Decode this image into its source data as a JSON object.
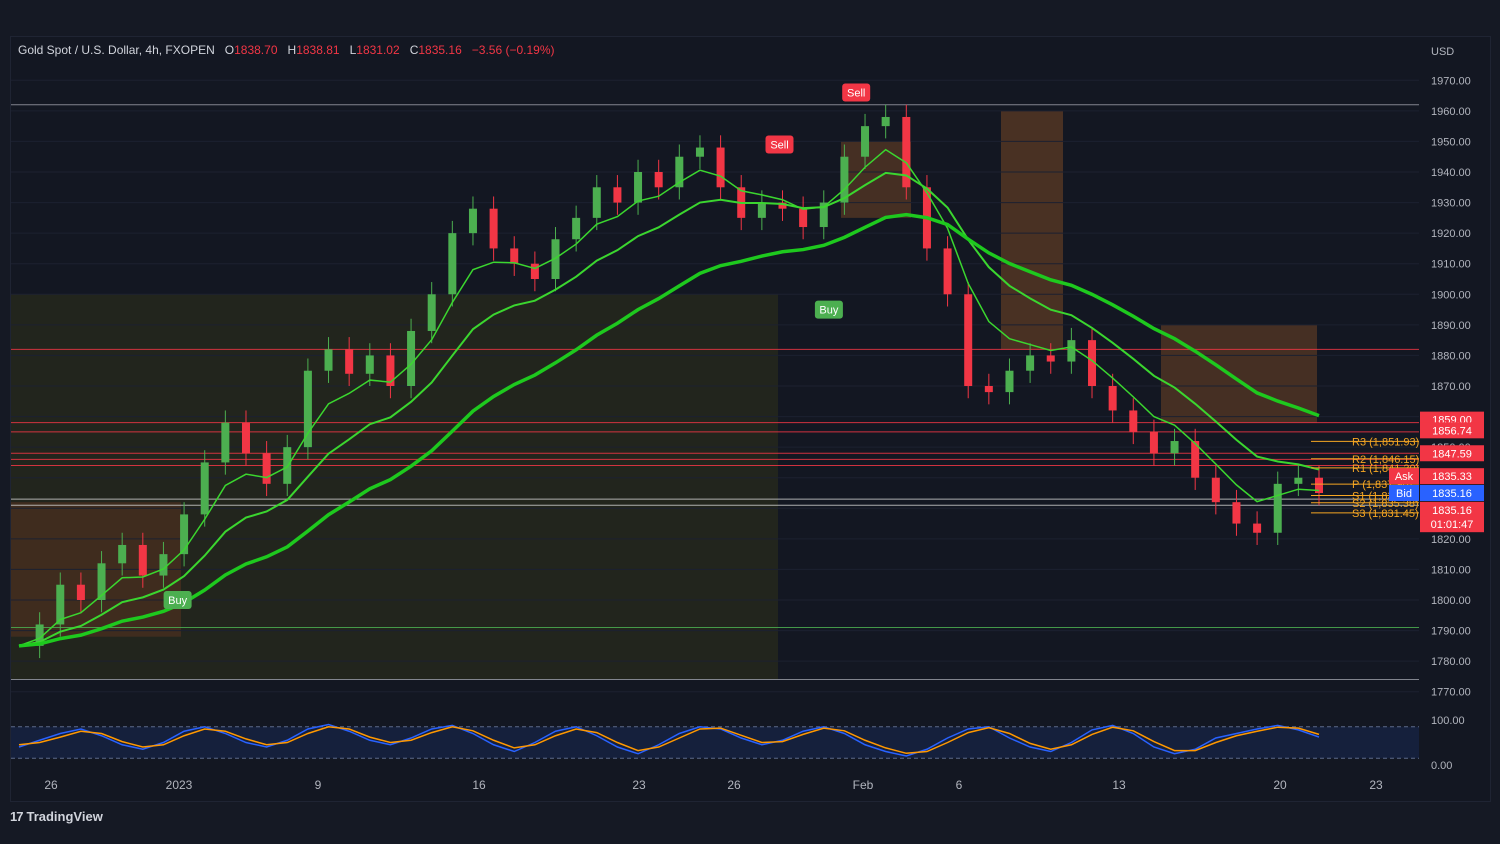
{
  "legend": {
    "symbol": "Gold Spot / U.S. Dollar, 4h, FXOPEN",
    "open_label": "O",
    "open": "1838.70",
    "high_label": "H",
    "high": "1838.81",
    "low_label": "L",
    "low": "1831.02",
    "close_label": "C",
    "close": "1835.16",
    "change": "−3.56 (−0.19%)"
  },
  "branding": {
    "name": "TradingView"
  },
  "colors": {
    "up": "#4caf50",
    "down": "#f23645",
    "background": "#131722",
    "ema_fast": "#3bd62f",
    "ema_slow": "#1ec91e",
    "ema_down": "#ff3b3b",
    "bid": "#2962ff",
    "ask": "#f23645",
    "pivot": "#f5a623"
  },
  "chart_data": {
    "type": "candlestick",
    "symbol": "XAUUSD",
    "timeframe": "4h",
    "currency_label": "USD",
    "ylim": [
      1765,
      1975
    ],
    "y_ticks": [
      "1970.00",
      "1960.00",
      "1950.00",
      "1940.00",
      "1930.00",
      "1920.00",
      "1910.00",
      "1900.00",
      "1890.00",
      "1880.00",
      "1870.00",
      "1860.00",
      "1850.00",
      "1840.00",
      "1830.00",
      "1820.00",
      "1810.00",
      "1800.00",
      "1790.00",
      "1780.00",
      "1770.00"
    ],
    "x_ticks": [
      "26",
      "2023",
      "9",
      "16",
      "23",
      "26",
      "Feb",
      "6",
      "13",
      "20",
      "23"
    ],
    "close_path": [
      1785,
      1792,
      1805,
      1800,
      1812,
      1818,
      1808,
      1815,
      1828,
      1845,
      1858,
      1848,
      1838,
      1850,
      1875,
      1882,
      1874,
      1880,
      1870,
      1888,
      1900,
      1920,
      1928,
      1915,
      1910,
      1905,
      1918,
      1925,
      1935,
      1930,
      1940,
      1935,
      1945,
      1948,
      1935,
      1925,
      1930,
      1928,
      1922,
      1930,
      1945,
      1955,
      1958,
      1935,
      1915,
      1900,
      1870,
      1868,
      1875,
      1880,
      1878,
      1885,
      1870,
      1862,
      1855,
      1848,
      1852,
      1840,
      1832,
      1825,
      1822,
      1838,
      1840,
      1835
    ],
    "horizontal_levels": [
      1962,
      1882,
      1858,
      1855,
      1848,
      1846,
      1844,
      1833,
      1831,
      1791,
      1774
    ],
    "price_labels": [
      {
        "text": "1859.00",
        "price": 1859,
        "color": "#f23645"
      },
      {
        "text": "1856.74",
        "price": 1855.5,
        "color": "#f23645"
      },
      {
        "text": "1847.59",
        "price": 1848,
        "color": "#f23645"
      },
      {
        "text": "1835.33",
        "price": 1840.5,
        "color": "#f23645",
        "tag": "Ask"
      },
      {
        "text": "1835.16",
        "price": 1835,
        "color": "#2962ff",
        "tag": "Bid"
      },
      {
        "text": "1835.16",
        "price": 1829.5,
        "color": "#f23645"
      },
      {
        "text": "01:01:47",
        "price": 1824.8,
        "color": "#f23645"
      }
    ],
    "pivots": [
      {
        "text": "R3 (1,851.93)",
        "price": 1851.9
      },
      {
        "text": "R2 (1,846.15)",
        "price": 1846.2
      },
      {
        "text": "R1 (1,841.30)",
        "price": 1843.2
      },
      {
        "text": "P (1,837.90)",
        "price": 1837.9
      },
      {
        "text": "S1 (1,836.00)",
        "price": 1834.2
      },
      {
        "text": "S2 (1,835.38)",
        "price": 1831.8
      },
      {
        "text": "S3 (1,831.45)",
        "price": 1828.5
      }
    ],
    "signals": [
      {
        "type": "Sell",
        "label": "Sell",
        "at": 0.644,
        "price": 1966
      },
      {
        "type": "Sell",
        "label": "Sell",
        "at": 0.585,
        "price": 1949
      },
      {
        "type": "Buy",
        "label": "Buy",
        "at": 0.623,
        "price": 1895
      },
      {
        "type": "Buy",
        "label": "Buy",
        "at": 0.122,
        "price": 1800
      }
    ],
    "oscillator": {
      "ylim": [
        0,
        100
      ],
      "y_ticks": [
        "100.00",
        "0.00"
      ],
      "k": [
        40,
        55,
        70,
        80,
        65,
        45,
        35,
        50,
        75,
        85,
        70,
        50,
        40,
        55,
        80,
        90,
        75,
        55,
        45,
        60,
        80,
        88,
        70,
        45,
        30,
        50,
        75,
        85,
        65,
        40,
        25,
        45,
        70,
        85,
        80,
        60,
        45,
        55,
        75,
        85,
        70,
        45,
        30,
        20,
        35,
        60,
        80,
        85,
        60,
        40,
        30,
        50,
        78,
        88,
        70,
        40,
        25,
        35,
        60,
        70,
        80,
        88,
        78,
        62
      ],
      "d": [
        45,
        50,
        62,
        75,
        70,
        52,
        40,
        45,
        65,
        80,
        75,
        58,
        45,
        50,
        70,
        85,
        80,
        62,
        50,
        55,
        72,
        85,
        76,
        55,
        38,
        45,
        65,
        80,
        72,
        50,
        32,
        40,
        60,
        80,
        82,
        66,
        50,
        52,
        68,
        82,
        76,
        55,
        38,
        26,
        30,
        50,
        72,
        83,
        70,
        48,
        35,
        45,
        68,
        84,
        76,
        52,
        32,
        32,
        50,
        65,
        75,
        84,
        82,
        68
      ]
    }
  }
}
